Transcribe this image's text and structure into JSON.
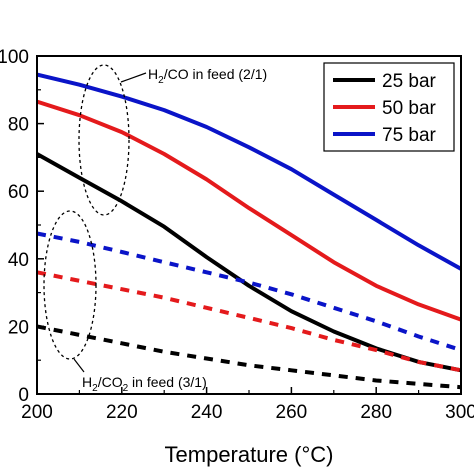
{
  "chart_data": {
    "type": "line",
    "title": "",
    "xlabel": "Temperature (°C)",
    "ylabel": "",
    "xlim": [
      200,
      300
    ],
    "ylim": [
      0,
      100
    ],
    "x_ticks": [
      200,
      220,
      240,
      260,
      280,
      300
    ],
    "y_ticks": [
      0,
      20,
      40,
      60,
      80,
      100
    ],
    "x_tick_labels": [
      "200",
      "220",
      "240",
      "260",
      "280",
      "300"
    ],
    "y_tick_labels": [
      "0",
      "20",
      "40",
      "60",
      "80",
      "100"
    ],
    "grid": false,
    "legend": {
      "position": "top-right",
      "entries": [
        {
          "label": "25 bar",
          "color": "#000000"
        },
        {
          "label": "50 bar",
          "color": "#e41a1c"
        },
        {
          "label": "75 bar",
          "color": "#0a14c8"
        }
      ]
    },
    "annotations": [
      {
        "base": "H",
        "sub1": "2",
        "mid": "/CO",
        "sub2": "",
        "tail": " in feed (2/1)",
        "encloses": "solid"
      },
      {
        "base": "H",
        "sub1": "2",
        "mid": "/CO",
        "sub2": "2",
        "tail": " in feed (3/1)",
        "encloses": "dashed"
      }
    ],
    "x": [
      200,
      210,
      220,
      230,
      240,
      250,
      260,
      270,
      280,
      290,
      300
    ],
    "series": [
      {
        "pressure": "25 bar",
        "feed": "H2/CO (2/1)",
        "style": "solid",
        "color": "#000000",
        "values": [
          71,
          64,
          57,
          49.5,
          40.5,
          32,
          24.5,
          18.5,
          13.5,
          9.5,
          7
        ]
      },
      {
        "pressure": "50 bar",
        "feed": "H2/CO (2/1)",
        "style": "solid",
        "color": "#e41a1c",
        "values": [
          86.5,
          82.5,
          77.5,
          71,
          63.5,
          55,
          47,
          39,
          32,
          26.5,
          22
        ]
      },
      {
        "pressure": "75 bar",
        "feed": "H2/CO (2/1)",
        "style": "solid",
        "color": "#0a14c8",
        "values": [
          94.5,
          91.5,
          88,
          84,
          79,
          73,
          66.5,
          59,
          51.5,
          44,
          37
        ]
      },
      {
        "pressure": "25 bar",
        "feed": "H2/CO2 (3/1)",
        "style": "dashed",
        "color": "#000000",
        "values": [
          20,
          17.5,
          15,
          12.5,
          10.5,
          8.5,
          7,
          5.5,
          4,
          3,
          2
        ]
      },
      {
        "pressure": "50 bar",
        "feed": "H2/CO2 (3/1)",
        "style": "dashed",
        "color": "#e41a1c",
        "values": [
          36,
          33.5,
          31,
          28.5,
          25.5,
          22.5,
          19.5,
          16,
          13,
          9.5,
          7
        ]
      },
      {
        "pressure": "75 bar",
        "feed": "H2/CO2 (3/1)",
        "style": "dashed",
        "color": "#0a14c8",
        "values": [
          47.5,
          45,
          42,
          39,
          36,
          33,
          29.5,
          25.5,
          21.5,
          17,
          13
        ]
      }
    ]
  }
}
